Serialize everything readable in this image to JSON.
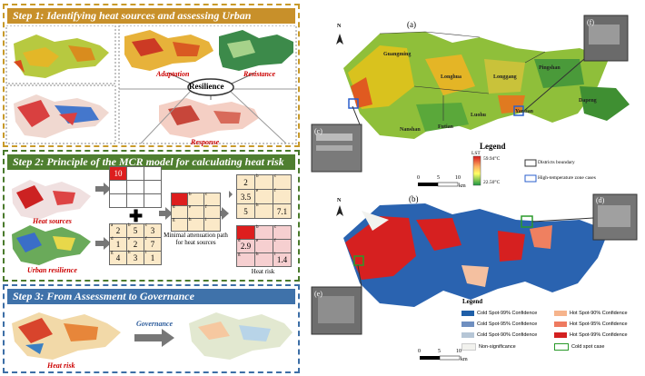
{
  "left": {
    "step1": {
      "title": "Step 1: Identifying heat sources and assessing Urban resilience",
      "adaptation": "Adaptation",
      "resistance": "Resistance",
      "resilience": "Resilience",
      "response": "Response"
    },
    "step2": {
      "title": "Step 2: Principle of the MCR model for calculating heat risk",
      "heat_sources": "Heat sources",
      "urban_resilience": "Urban resilience",
      "min_path": "Minimal attenuation path for heat sources",
      "heat_risk": "Heat risk",
      "grid_top": {
        "value": "10"
      },
      "grid_res": {
        "subs": [
          "a",
          "b",
          "c",
          "d",
          "e",
          "f",
          "g",
          "h",
          "i"
        ],
        "values": [
          "2",
          "5",
          "3",
          "1",
          "2",
          "7",
          "4",
          "3",
          "1"
        ]
      },
      "grid_mid": {
        "subs": [
          "b",
          "c",
          "d",
          "e",
          "f",
          "g",
          "h",
          "i"
        ],
        "values": [
          "2",
          "3.5",
          "5",
          "7.1"
        ]
      },
      "grid_risk": {
        "subs": [
          "b",
          "c",
          "d",
          "e",
          "f",
          "g",
          "h",
          "i"
        ],
        "values": [
          "2.9",
          "1.4"
        ]
      }
    },
    "step3": {
      "title": "Step 3: From Assessment to Governance",
      "governance": "Governance",
      "heat_risk": "Heat risk"
    }
  },
  "right": {
    "label_a": "(a)",
    "label_b": "(b)",
    "label_c": "(c)",
    "label_d": "(d)",
    "label_e": "(e)",
    "label_f": "(f)",
    "north": "N",
    "districts": [
      "Guangming",
      "Longhua",
      "Longgang",
      "Pingshan",
      "Dapeng",
      "Luohu",
      "Futian",
      "Nanshan",
      "Yantian"
    ],
    "legend_a": {
      "title": "Legend",
      "lst": "LST",
      "high": "59.94°C",
      "low": "22.50°C",
      "districts_boundary": "Districts boundary",
      "high_temp": "High-temperature zone cases"
    },
    "scale": {
      "t0": "0",
      "t1": "5",
      "t2": "10",
      "unit": "km"
    },
    "legend_b": {
      "title": "Legend",
      "items": [
        {
          "label": "Cold Spot-99% Confidence",
          "color": "#1f5fa8"
        },
        {
          "label": "Cold Spot-95% Confidence",
          "color": "#6f8fc0"
        },
        {
          "label": "Cold Spot-90% Confidence",
          "color": "#b6c6d6"
        },
        {
          "label": "Non-significance",
          "color": "#f2f2ee"
        },
        {
          "label": "Hot Spot-90% Confidence",
          "color": "#f6b48c"
        },
        {
          "label": "Hot Spot-95% Confidence",
          "color": "#ee7a60"
        },
        {
          "label": "Hot Spot-99% Confidence",
          "color": "#d32020"
        },
        {
          "label": "Cold spot case",
          "color": "#ffffff"
        }
      ]
    },
    "colors": {
      "step1": "#b8860b",
      "step2": "#4a7a2c",
      "step3": "#3c6ea6"
    }
  }
}
